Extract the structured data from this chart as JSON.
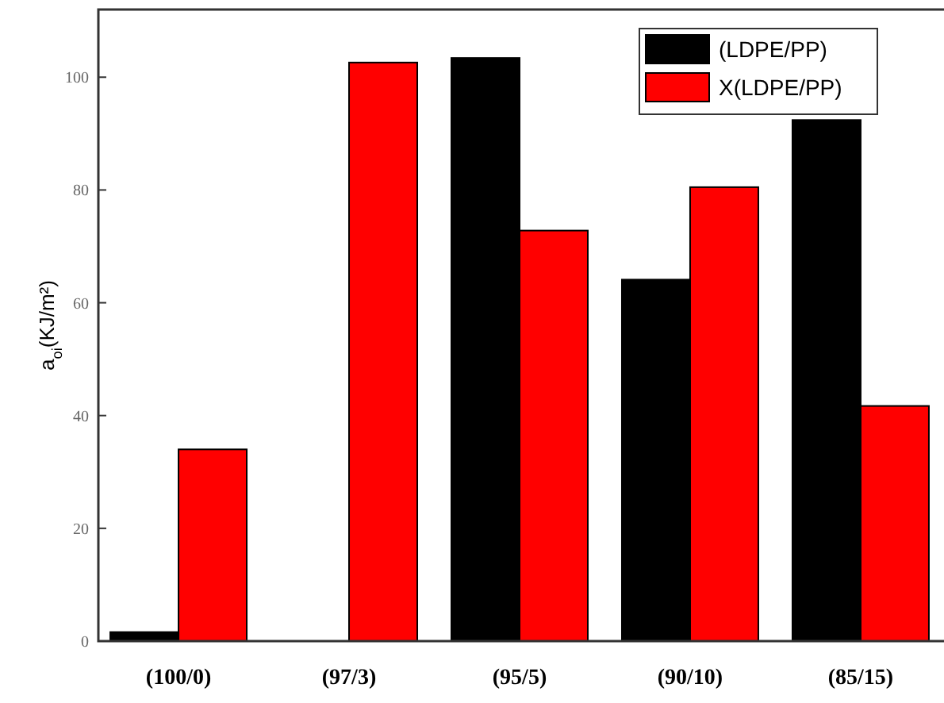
{
  "chart_data": {
    "type": "bar",
    "ylabel": "a$_{oi}$(KJ/m²)",
    "categories": [
      "(100/0)",
      "(97/3)",
      "(95/5)",
      "(90/10)",
      "(85/15)"
    ],
    "series": [
      {
        "name": "(LDPE/PP)",
        "color": "#000000",
        "values": [
          1.6,
          null,
          103.4,
          64.1,
          92.4
        ]
      },
      {
        "name": "X(LDPE/PP)",
        "color": "#ff0000",
        "values": [
          34,
          102.6,
          72.8,
          80.5,
          41.7
        ]
      }
    ],
    "ylim": [
      0,
      112
    ],
    "yticks": [
      0,
      20,
      40,
      60,
      80,
      100
    ],
    "legend": "top right",
    "grid": false
  }
}
